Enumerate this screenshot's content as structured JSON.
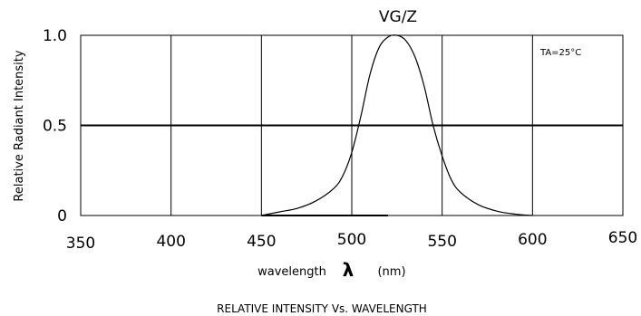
{
  "chart_data": {
    "type": "line",
    "title": "VG/Z",
    "xlabel": "wavelength",
    "xlabel_symbol": "λ",
    "xlabel_unit": "(nm)",
    "ylabel": "Relative Radiant Intensity",
    "caption": "RELATIVE INTENSITY Vs. WAVELENGTH",
    "annotation": "TA=25°C",
    "xlim": [
      350,
      650
    ],
    "ylim": [
      0,
      1.0
    ],
    "grid": true,
    "x_ticks": [
      {
        "value": 350,
        "label": "350"
      },
      {
        "value": 400,
        "label": "400"
      },
      {
        "value": 450,
        "label": "450"
      },
      {
        "value": 500,
        "label": "500"
      },
      {
        "value": 550,
        "label": "550"
      },
      {
        "value": 600,
        "label": "600"
      },
      {
        "value": 650,
        "label": "650"
      }
    ],
    "y_ticks": [
      {
        "value": 0,
        "label": "0"
      },
      {
        "value": 0.5,
        "label": "0.5"
      },
      {
        "value": 1.0,
        "label": "1.0"
      }
    ],
    "series": [
      {
        "x": [
          450,
          460,
          470,
          480,
          490,
          495,
          500,
          505,
          510,
          515,
          520,
          525,
          530,
          535,
          540,
          545,
          550,
          555,
          560,
          570,
          580,
          590,
          600
        ],
        "y": [
          0.0,
          0.02,
          0.04,
          0.08,
          0.15,
          0.22,
          0.35,
          0.55,
          0.78,
          0.93,
          0.99,
          1.0,
          0.97,
          0.88,
          0.72,
          0.5,
          0.33,
          0.2,
          0.13,
          0.06,
          0.025,
          0.008,
          0.0
        ]
      }
    ],
    "baseline_segments": [
      {
        "x": [
          450,
          520
        ],
        "y": [
          0,
          0
        ]
      }
    ]
  },
  "colors": {
    "line": "#000000",
    "grid": "#000000",
    "background": "#ffffff"
  }
}
